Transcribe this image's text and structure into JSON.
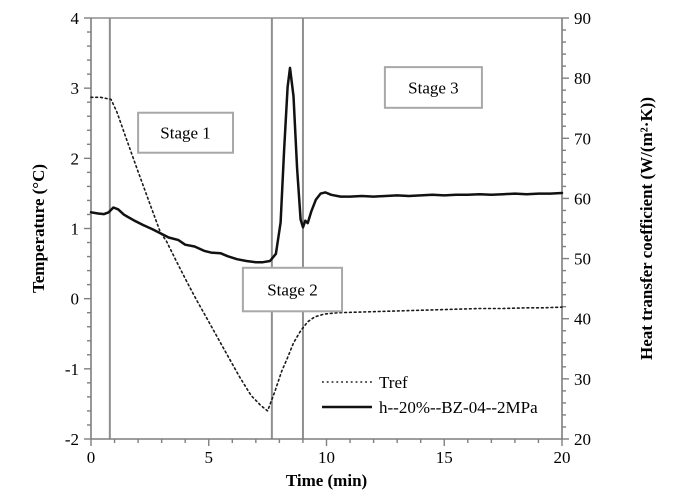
{
  "chart_data": {
    "type": "line",
    "title": "",
    "x_axis": {
      "label": "Time (min)",
      "min": 0,
      "max": 20,
      "major_tick": 5,
      "minor_tick": 1,
      "tick_labels": [
        "0",
        "5",
        "10",
        "15",
        "20"
      ]
    },
    "y_axis_left": {
      "label": "Temperature (°C)",
      "min": -2,
      "max": 4,
      "major_tick": 1,
      "minor_tick": 0.2,
      "tick_labels": [
        "4",
        "3",
        "2",
        "1",
        "0",
        "-1",
        "-2"
      ]
    },
    "y_axis_right": {
      "label": "Heat transfer coefficient (W/(m²·K))",
      "min": 20,
      "max": 90,
      "major_tick": 10,
      "minor_tick": 2,
      "tick_labels": [
        "90",
        "80",
        "70",
        "60",
        "50",
        "40",
        "30",
        "20"
      ]
    },
    "grid": false,
    "legend": {
      "position": "inside-lower-right",
      "items": [
        "Tref",
        "h--20%--BZ-04--2MPa"
      ]
    },
    "stage_lines_x": [
      0.8,
      7.68,
      9.0
    ],
    "annotations": [
      {
        "text": "Stage 1",
        "x0": 2.0,
        "x1": 6.03,
        "y0": 2.08,
        "y1": 2.65,
        "y_axis": "left"
      },
      {
        "text": "Stage 2",
        "x0": 6.45,
        "x1": 10.66,
        "y0": -0.18,
        "y1": 0.44,
        "y_axis": "left"
      },
      {
        "text": "Stage 3",
        "x0": 12.48,
        "x1": 16.6,
        "y0": 2.72,
        "y1": 3.3,
        "y_axis": "left"
      }
    ],
    "series": [
      {
        "name": "Tref",
        "axis": "left",
        "style": "dotted",
        "color": "#1a1a1a",
        "points": [
          [
            0,
            2.87
          ],
          [
            0.4,
            2.87
          ],
          [
            0.85,
            2.84
          ],
          [
            1.1,
            2.66
          ],
          [
            1.5,
            2.28
          ],
          [
            2.0,
            1.81
          ],
          [
            2.5,
            1.35
          ],
          [
            2.95,
            0.94
          ],
          [
            3.2,
            0.82
          ],
          [
            3.6,
            0.55
          ],
          [
            4.1,
            0.22
          ],
          [
            4.5,
            -0.03
          ],
          [
            5.0,
            -0.33
          ],
          [
            5.4,
            -0.57
          ],
          [
            5.9,
            -0.87
          ],
          [
            6.3,
            -1.11
          ],
          [
            6.8,
            -1.38
          ],
          [
            7.2,
            -1.52
          ],
          [
            7.5,
            -1.6
          ],
          [
            7.8,
            -1.33
          ],
          [
            8.1,
            -1.03
          ],
          [
            8.35,
            -0.84
          ],
          [
            8.6,
            -0.63
          ],
          [
            8.9,
            -0.46
          ],
          [
            9.2,
            -0.33
          ],
          [
            9.5,
            -0.26
          ],
          [
            9.9,
            -0.22
          ],
          [
            10.5,
            -0.2
          ],
          [
            11.5,
            -0.19
          ],
          [
            12.5,
            -0.18
          ],
          [
            13.5,
            -0.17
          ],
          [
            14.5,
            -0.16
          ],
          [
            15.5,
            -0.15
          ],
          [
            16.5,
            -0.14
          ],
          [
            17.5,
            -0.14
          ],
          [
            18.5,
            -0.13
          ],
          [
            19.2,
            -0.13
          ],
          [
            20,
            -0.12
          ]
        ]
      },
      {
        "name": "h--20%--BZ-04--2MPa",
        "axis": "right",
        "style": "solid",
        "color": "#111111",
        "points": [
          [
            0,
            57.7
          ],
          [
            0.3,
            57.5
          ],
          [
            0.55,
            57.4
          ],
          [
            0.75,
            57.7
          ],
          [
            0.95,
            58.5
          ],
          [
            1.15,
            58.2
          ],
          [
            1.4,
            57.3
          ],
          [
            1.8,
            56.4
          ],
          [
            2.2,
            55.6
          ],
          [
            2.6,
            54.9
          ],
          [
            3.0,
            54.1
          ],
          [
            3.3,
            53.5
          ],
          [
            3.7,
            53.1
          ],
          [
            4.0,
            52.3
          ],
          [
            4.4,
            52.0
          ],
          [
            4.8,
            51.3
          ],
          [
            5.1,
            51.0
          ],
          [
            5.5,
            50.9
          ],
          [
            5.8,
            50.4
          ],
          [
            6.2,
            49.9
          ],
          [
            6.6,
            49.6
          ],
          [
            7.0,
            49.4
          ],
          [
            7.3,
            49.4
          ],
          [
            7.6,
            49.6
          ],
          [
            7.85,
            50.8
          ],
          [
            8.05,
            56.0
          ],
          [
            8.2,
            68.0
          ],
          [
            8.35,
            78.5
          ],
          [
            8.45,
            81.7
          ],
          [
            8.6,
            77.0
          ],
          [
            8.75,
            65.0
          ],
          [
            8.9,
            56.5
          ],
          [
            9.0,
            55.2
          ],
          [
            9.1,
            56.3
          ],
          [
            9.2,
            55.9
          ],
          [
            9.35,
            57.8
          ],
          [
            9.55,
            59.8
          ],
          [
            9.75,
            60.8
          ],
          [
            9.95,
            61.0
          ],
          [
            10.2,
            60.6
          ],
          [
            10.6,
            60.3
          ],
          [
            11.0,
            60.3
          ],
          [
            11.5,
            60.4
          ],
          [
            12.0,
            60.3
          ],
          [
            12.5,
            60.4
          ],
          [
            13.0,
            60.5
          ],
          [
            13.5,
            60.4
          ],
          [
            14.0,
            60.5
          ],
          [
            14.5,
            60.6
          ],
          [
            15.0,
            60.5
          ],
          [
            15.5,
            60.6
          ],
          [
            16.0,
            60.6
          ],
          [
            16.5,
            60.7
          ],
          [
            17.0,
            60.6
          ],
          [
            17.5,
            60.7
          ],
          [
            18.0,
            60.8
          ],
          [
            18.5,
            60.7
          ],
          [
            19.0,
            60.8
          ],
          [
            19.5,
            60.8
          ],
          [
            20,
            60.9
          ]
        ]
      }
    ],
    "colors": {
      "axis": "#7f7f7f",
      "stage_line": "#8f8f8f",
      "annotation_box_border": "#a8a8a8",
      "annotation_box_fill": "#ffffff",
      "text": "#000000"
    }
  }
}
